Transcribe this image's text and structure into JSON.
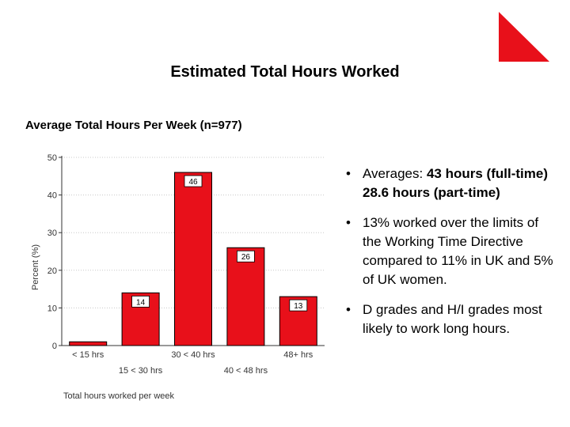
{
  "slide": {
    "title": "Estimated Total Hours Worked",
    "subtitle": "Average Total Hours Per Week (n=977)",
    "accent_color": "#e8101a"
  },
  "bullets": [
    {
      "prefix": "Averages: ",
      "bold": "43 hours (full-time) 28.6 hours (part-time)",
      "suffix": ""
    },
    {
      "prefix": "13% worked over the limits of the Working Time Directive compared to 11% in UK and 5% of UK women.",
      "bold": "",
      "suffix": ""
    },
    {
      "prefix": "D grades and H/I grades most likely to work long hours.",
      "bold": "",
      "suffix": ""
    }
  ],
  "chart_data": {
    "type": "bar",
    "categories": [
      "< 15 hrs",
      "15 < 30 hrs",
      "30 < 40 hrs",
      "40 < 48 hrs",
      "48+ hrs"
    ],
    "values": [
      1,
      14,
      46,
      26,
      13
    ],
    "data_labels": [
      "",
      "14",
      "46",
      "26",
      "13"
    ],
    "xlabel": "Total hours worked per week",
    "ylabel": "Percent (%)",
    "ylim": [
      0,
      50
    ],
    "yticks": [
      0,
      10,
      20,
      30,
      40,
      50
    ],
    "grid": true,
    "bar_color": "#e8101a"
  }
}
